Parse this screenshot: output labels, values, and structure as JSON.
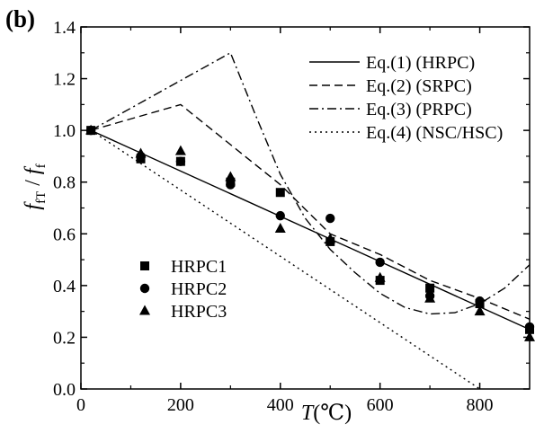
{
  "chart_data": {
    "type": "scatter",
    "panel_label": "(b)",
    "xlabel_var": "T",
    "xlabel_unit": "(℃)",
    "ylabel_main": "f",
    "ylabel_sub": "fT",
    "ylabel_sep": " / ",
    "ylabel_main2": "f",
    "ylabel_sub2": "f",
    "xlim": [
      0,
      900
    ],
    "ylim": [
      0.0,
      1.4
    ],
    "xticks": [
      0,
      200,
      400,
      600,
      800
    ],
    "xtick_labels": [
      "0",
      "200",
      "400",
      "600",
      "800"
    ],
    "yticks": [
      0.0,
      0.2,
      0.4,
      0.6,
      0.8,
      1.0,
      1.2,
      1.4
    ],
    "ytick_labels": [
      "0.0",
      "0.2",
      "0.4",
      "0.6",
      "0.8",
      "1.0",
      "1.2",
      "1.4"
    ],
    "grid": false,
    "legend_lines_position": "top-right",
    "legend_markers_position": "bottom-left",
    "line_series": [
      {
        "name": "Eq.(1) (HRPC)",
        "style": "solid",
        "x": [
          20,
          900
        ],
        "y": [
          1.0,
          0.23
        ]
      },
      {
        "name": "Eq.(2) (SRPC)",
        "style": "dashed",
        "x": [
          20,
          200,
          400,
          500,
          600,
          700,
          800,
          900
        ],
        "y": [
          1.0,
          1.1,
          0.79,
          0.6,
          0.52,
          0.42,
          0.35,
          0.27
        ]
      },
      {
        "name": "Eq.(3) (PRPC)",
        "style": "dashdot",
        "x": [
          20,
          300,
          350,
          400,
          450,
          500,
          550,
          600,
          650,
          700,
          750,
          800,
          850,
          900
        ],
        "y": [
          1.0,
          1.3,
          1.06,
          0.83,
          0.66,
          0.54,
          0.45,
          0.37,
          0.315,
          0.29,
          0.295,
          0.33,
          0.39,
          0.48
        ]
      },
      {
        "name": "Eq.(4) (NSC/HSC)",
        "style": "dotted",
        "x": [
          20,
          800
        ],
        "y": [
          1.0,
          0.0
        ]
      }
    ],
    "marker_series": [
      {
        "name": "HRPC1",
        "marker": "square",
        "x": [
          20,
          120,
          200,
          300,
          400,
          500,
          600,
          700,
          800,
          900
        ],
        "y": [
          1.0,
          0.89,
          0.88,
          0.8,
          0.76,
          0.57,
          0.42,
          0.39,
          0.33,
          0.23
        ]
      },
      {
        "name": "HRPC2",
        "marker": "circle",
        "x": [
          20,
          120,
          200,
          300,
          400,
          500,
          600,
          700,
          800,
          900
        ],
        "y": [
          1.0,
          0.9,
          0.88,
          0.79,
          0.67,
          0.66,
          0.49,
          0.36,
          0.34,
          0.24
        ]
      },
      {
        "name": "HRPC3",
        "marker": "triangle",
        "x": [
          20,
          120,
          200,
          300,
          400,
          500,
          600,
          700,
          800,
          900
        ],
        "y": [
          1.0,
          0.91,
          0.92,
          0.82,
          0.62,
          0.58,
          0.43,
          0.35,
          0.3,
          0.2
        ]
      }
    ]
  }
}
